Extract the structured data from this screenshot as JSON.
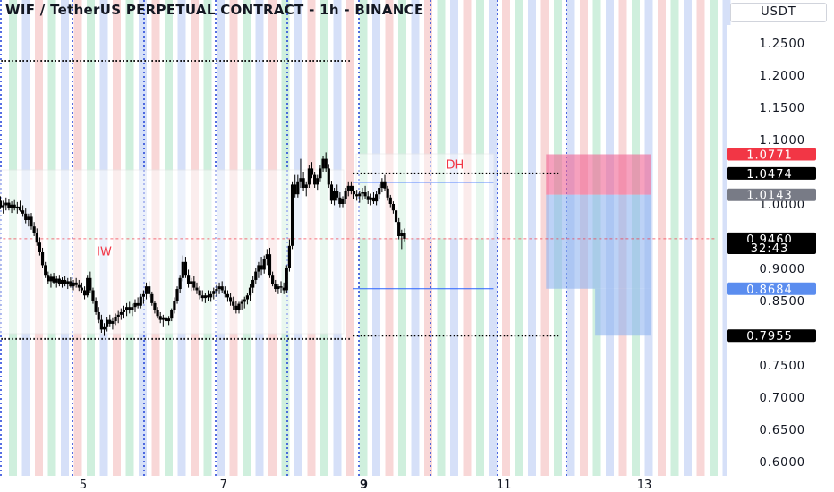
{
  "header": {
    "title": "WIF / TetherUS PERPETUAL CONTRACT - 1h - BINANCE",
    "currency": "USDT"
  },
  "chart_data": {
    "type": "candlestick",
    "ylim": [
      0.59,
      1.27
    ],
    "y_ticks": [
      "1.2500",
      "1.2000",
      "1.1500",
      "1.1000",
      "1.0000",
      "0.9000",
      "0.8500",
      "0.7500",
      "0.7000",
      "0.6500",
      "0.6000"
    ],
    "x_ticks": [
      "5",
      "7",
      "9",
      "11",
      "13"
    ],
    "x_tick_values": [
      5,
      7,
      9,
      11,
      13
    ],
    "xlim": [
      3.78,
      14.0
    ],
    "price_labels": [
      {
        "text": "1.0771",
        "value": 1.0771,
        "bg": "#f23645",
        "fg": "#ffffff"
      },
      {
        "text": "1.0474",
        "value": 1.0474,
        "bg": "#000000",
        "fg": "#ffffff"
      },
      {
        "text": "1.0143",
        "value": 1.0143,
        "bg": "#787b86",
        "fg": "#ffffff"
      },
      {
        "text": "0.9460",
        "value": 0.946,
        "bg": "#000000",
        "fg": "#ffffff"
      },
      {
        "text": "32:43",
        "value": 0.932,
        "bg": "#000000",
        "fg": "#ffffff"
      },
      {
        "text": "0.8684",
        "value": 0.8684,
        "bg": "#5b8def",
        "fg": "#ffffff"
      },
      {
        "text": "0.7955",
        "value": 0.7955,
        "bg": "#000000",
        "fg": "#ffffff"
      }
    ],
    "annotations": [
      {
        "text": "IW",
        "x": 5.3,
        "y": 0.92,
        "color": "#f23645"
      },
      {
        "text": "DH",
        "x": 10.3,
        "y": 1.055,
        "color": "#f23645"
      }
    ],
    "hlines": [
      {
        "value": 1.2222,
        "x_start": 3.78,
        "x_end": 8.8,
        "style": "dotted"
      },
      {
        "value": 0.7905,
        "x_start": 3.78,
        "x_end": 8.8,
        "style": "dotted"
      },
      {
        "value": 1.0474,
        "x_start": 8.85,
        "x_end": 11.8,
        "style": "dotted"
      },
      {
        "value": 0.7955,
        "x_start": 8.85,
        "x_end": 11.8,
        "style": "dotted"
      },
      {
        "value": 1.0335,
        "x_start": 8.85,
        "x_end": 10.85,
        "style": "solid-blue"
      },
      {
        "value": 0.8684,
        "x_start": 8.85,
        "x_end": 10.85,
        "style": "solid-blue"
      },
      {
        "value": 0.946,
        "x_start": 3.78,
        "x_end": 14.0,
        "style": "dashed-red"
      }
    ],
    "zones": [
      {
        "role": "stop",
        "x_start": 11.6,
        "x_end": 13.1,
        "y_low": 1.0143,
        "y_high": 1.0771,
        "color": "#f06292"
      },
      {
        "role": "target",
        "x_start": 11.6,
        "x_end": 13.1,
        "y_low": 0.8684,
        "y_high": 1.0143,
        "color": "#90b4f0"
      },
      {
        "role": "target-ext",
        "x_start": 12.3,
        "x_end": 13.1,
        "y_low": 0.7955,
        "y_high": 0.8684,
        "color": "#90b4f0"
      }
    ],
    "candles": [
      [
        3.78,
        0.995,
        1.012,
        0.988,
        1.005
      ],
      [
        3.82,
        1.005,
        1.012,
        0.992,
        0.995
      ],
      [
        3.86,
        0.995,
        1.005,
        0.985,
        0.998
      ],
      [
        3.9,
        0.998,
        1.01,
        0.99,
        1.002
      ],
      [
        3.94,
        1.002,
        1.008,
        0.99,
        0.994
      ],
      [
        3.98,
        0.994,
        1.004,
        0.986,
        0.999
      ],
      [
        4.02,
        0.999,
        1.006,
        0.99,
        0.993
      ],
      [
        4.06,
        0.993,
        1.003,
        0.985,
        0.996
      ],
      [
        4.1,
        0.996,
        1.005,
        0.988,
        0.99
      ],
      [
        4.14,
        0.99,
        0.998,
        0.98,
        0.985
      ],
      [
        4.18,
        0.985,
        0.993,
        0.97,
        0.975
      ],
      [
        4.22,
        0.975,
        0.985,
        0.965,
        0.98
      ],
      [
        4.26,
        0.98,
        0.986,
        0.96,
        0.965
      ],
      [
        4.3,
        0.965,
        0.972,
        0.95,
        0.955
      ],
      [
        4.34,
        0.955,
        0.962,
        0.935,
        0.94
      ],
      [
        4.38,
        0.94,
        0.948,
        0.92,
        0.925
      ],
      [
        4.42,
        0.925,
        0.932,
        0.9,
        0.905
      ],
      [
        4.46,
        0.905,
        0.91,
        0.885,
        0.89
      ],
      [
        4.5,
        0.89,
        0.895,
        0.875,
        0.88
      ],
      [
        4.54,
        0.88,
        0.892,
        0.87,
        0.887
      ],
      [
        4.58,
        0.887,
        0.893,
        0.875,
        0.878
      ],
      [
        4.62,
        0.878,
        0.889,
        0.87,
        0.884
      ],
      [
        4.66,
        0.884,
        0.89,
        0.872,
        0.876
      ],
      [
        4.7,
        0.876,
        0.886,
        0.87,
        0.882
      ],
      [
        4.74,
        0.882,
        0.888,
        0.872,
        0.875
      ],
      [
        4.78,
        0.875,
        0.885,
        0.868,
        0.88
      ],
      [
        4.82,
        0.88,
        0.886,
        0.87,
        0.872
      ],
      [
        4.86,
        0.872,
        0.882,
        0.866,
        0.878
      ],
      [
        4.9,
        0.878,
        0.885,
        0.87,
        0.874
      ],
      [
        4.94,
        0.874,
        0.882,
        0.865,
        0.87
      ],
      [
        4.98,
        0.87,
        0.878,
        0.862,
        0.866
      ],
      [
        5.02,
        0.866,
        0.872,
        0.852,
        0.858
      ],
      [
        5.06,
        0.858,
        0.89,
        0.855,
        0.885
      ],
      [
        5.1,
        0.885,
        0.895,
        0.862,
        0.866
      ],
      [
        5.14,
        0.866,
        0.87,
        0.845,
        0.85
      ],
      [
        5.18,
        0.85,
        0.855,
        0.828,
        0.832
      ],
      [
        5.22,
        0.832,
        0.84,
        0.815,
        0.82
      ],
      [
        5.26,
        0.82,
        0.828,
        0.8,
        0.805
      ],
      [
        5.3,
        0.805,
        0.815,
        0.795,
        0.81
      ],
      [
        5.34,
        0.81,
        0.825,
        0.802,
        0.82
      ],
      [
        5.38,
        0.82,
        0.828,
        0.81,
        0.814
      ],
      [
        5.42,
        0.814,
        0.824,
        0.805,
        0.818
      ],
      [
        5.46,
        0.818,
        0.83,
        0.812,
        0.825
      ],
      [
        5.5,
        0.825,
        0.834,
        0.815,
        0.828
      ],
      [
        5.54,
        0.828,
        0.838,
        0.82,
        0.832
      ],
      [
        5.58,
        0.832,
        0.842,
        0.822,
        0.836
      ],
      [
        5.62,
        0.836,
        0.846,
        0.826,
        0.84
      ],
      [
        5.66,
        0.84,
        0.848,
        0.83,
        0.835
      ],
      [
        5.7,
        0.835,
        0.845,
        0.826,
        0.84
      ],
      [
        5.74,
        0.84,
        0.852,
        0.832,
        0.846
      ],
      [
        5.78,
        0.846,
        0.855,
        0.838,
        0.842
      ],
      [
        5.82,
        0.842,
        0.86,
        0.838,
        0.856
      ],
      [
        5.86,
        0.856,
        0.866,
        0.845,
        0.86
      ],
      [
        5.9,
        0.86,
        0.878,
        0.852,
        0.872
      ],
      [
        5.94,
        0.872,
        0.88,
        0.855,
        0.86
      ],
      [
        5.98,
        0.86,
        0.864,
        0.842,
        0.846
      ],
      [
        6.02,
        0.846,
        0.85,
        0.83,
        0.835
      ],
      [
        6.06,
        0.835,
        0.84,
        0.822,
        0.826
      ],
      [
        6.1,
        0.826,
        0.832,
        0.815,
        0.82
      ],
      [
        6.14,
        0.82,
        0.828,
        0.81,
        0.824
      ],
      [
        6.18,
        0.824,
        0.83,
        0.812,
        0.818
      ],
      [
        6.22,
        0.818,
        0.826,
        0.812,
        0.822
      ],
      [
        6.26,
        0.822,
        0.838,
        0.818,
        0.835
      ],
      [
        6.3,
        0.835,
        0.855,
        0.83,
        0.85
      ],
      [
        6.34,
        0.85,
        0.872,
        0.845,
        0.868
      ],
      [
        6.38,
        0.868,
        0.89,
        0.862,
        0.885
      ],
      [
        6.42,
        0.885,
        0.92,
        0.88,
        0.91
      ],
      [
        6.46,
        0.91,
        0.918,
        0.885,
        0.89
      ],
      [
        6.5,
        0.89,
        0.898,
        0.87,
        0.875
      ],
      [
        6.54,
        0.875,
        0.885,
        0.865,
        0.88
      ],
      [
        6.58,
        0.88,
        0.888,
        0.866,
        0.87
      ],
      [
        6.62,
        0.87,
        0.878,
        0.86,
        0.866
      ],
      [
        6.66,
        0.866,
        0.872,
        0.852,
        0.858
      ],
      [
        6.7,
        0.858,
        0.866,
        0.848,
        0.854
      ],
      [
        6.74,
        0.854,
        0.862,
        0.846,
        0.858
      ],
      [
        6.78,
        0.858,
        0.866,
        0.85,
        0.855
      ],
      [
        6.82,
        0.855,
        0.865,
        0.848,
        0.86
      ],
      [
        6.86,
        0.86,
        0.87,
        0.852,
        0.865
      ],
      [
        6.9,
        0.865,
        0.874,
        0.856,
        0.868
      ],
      [
        6.94,
        0.868,
        0.878,
        0.86,
        0.872
      ],
      [
        6.98,
        0.872,
        0.88,
        0.862,
        0.866
      ],
      [
        7.02,
        0.866,
        0.872,
        0.855,
        0.86
      ],
      [
        7.06,
        0.86,
        0.866,
        0.848,
        0.855
      ],
      [
        7.1,
        0.855,
        0.862,
        0.842,
        0.848
      ],
      [
        7.14,
        0.848,
        0.856,
        0.836,
        0.842
      ],
      [
        7.18,
        0.842,
        0.85,
        0.83,
        0.836
      ],
      [
        7.22,
        0.836,
        0.848,
        0.83,
        0.845
      ],
      [
        7.26,
        0.845,
        0.852,
        0.836,
        0.848
      ],
      [
        7.3,
        0.848,
        0.856,
        0.838,
        0.852
      ],
      [
        7.34,
        0.852,
        0.862,
        0.844,
        0.858
      ],
      [
        7.38,
        0.858,
        0.875,
        0.85,
        0.87
      ],
      [
        7.42,
        0.87,
        0.888,
        0.862,
        0.882
      ],
      [
        7.46,
        0.882,
        0.9,
        0.875,
        0.895
      ],
      [
        7.5,
        0.895,
        0.91,
        0.885,
        0.905
      ],
      [
        7.54,
        0.905,
        0.918,
        0.89,
        0.898
      ],
      [
        7.58,
        0.898,
        0.92,
        0.892,
        0.915
      ],
      [
        7.62,
        0.915,
        0.93,
        0.905,
        0.922
      ],
      [
        7.66,
        0.922,
        0.932,
        0.885,
        0.89
      ],
      [
        7.7,
        0.89,
        0.895,
        0.872,
        0.876
      ],
      [
        7.74,
        0.876,
        0.882,
        0.864,
        0.868
      ],
      [
        7.78,
        0.868,
        0.876,
        0.86,
        0.872
      ],
      [
        7.82,
        0.872,
        0.88,
        0.862,
        0.87
      ],
      [
        7.86,
        0.87,
        0.878,
        0.86,
        0.866
      ],
      [
        7.9,
        0.866,
        0.905,
        0.862,
        0.9
      ],
      [
        7.94,
        0.9,
        0.945,
        0.895,
        0.935
      ],
      [
        7.98,
        0.935,
        1.035,
        0.93,
        1.03
      ],
      [
        8.02,
        1.03,
        1.045,
        1.01,
        1.015
      ],
      [
        8.06,
        1.015,
        1.045,
        1.01,
        1.035
      ],
      [
        8.1,
        1.035,
        1.07,
        1.025,
        1.04
      ],
      [
        8.14,
        1.04,
        1.05,
        1.02,
        1.025
      ],
      [
        8.18,
        1.025,
        1.035,
        1.012,
        1.03
      ],
      [
        8.22,
        1.03,
        1.06,
        1.025,
        1.055
      ],
      [
        8.26,
        1.055,
        1.065,
        1.04,
        1.045
      ],
      [
        8.3,
        1.045,
        1.05,
        1.025,
        1.03
      ],
      [
        8.34,
        1.03,
        1.045,
        1.022,
        1.04
      ],
      [
        8.38,
        1.04,
        1.06,
        1.035,
        1.055
      ],
      [
        8.42,
        1.055,
        1.075,
        1.05,
        1.07
      ],
      [
        8.46,
        1.07,
        1.08,
        1.05,
        1.055
      ],
      [
        8.5,
        1.055,
        1.062,
        1.025,
        1.03
      ],
      [
        8.54,
        1.03,
        1.036,
        1.0,
        1.005
      ],
      [
        8.58,
        1.005,
        1.025,
        0.998,
        1.02
      ],
      [
        8.62,
        1.02,
        1.03,
        1.005,
        1.01
      ],
      [
        8.66,
        1.01,
        1.018,
        0.995,
        1.0
      ],
      [
        8.7,
        1.0,
        1.012,
        0.995,
        1.008
      ],
      [
        8.74,
        1.008,
        1.025,
        1.0,
        1.02
      ],
      [
        8.78,
        1.02,
        1.035,
        1.012,
        1.028
      ],
      [
        8.82,
        1.028,
        1.035,
        1.015,
        1.02
      ],
      [
        8.86,
        1.02,
        1.028,
        1.008,
        1.015
      ],
      [
        8.9,
        1.015,
        1.022,
        1.005,
        1.012
      ],
      [
        8.94,
        1.012,
        1.02,
        1.002,
        1.016
      ],
      [
        8.98,
        1.016,
        1.025,
        1.006,
        1.018
      ],
      [
        9.02,
        1.018,
        1.028,
        1.008,
        1.012
      ],
      [
        9.06,
        1.012,
        1.02,
        1.0,
        1.006
      ],
      [
        9.1,
        1.006,
        1.016,
        0.998,
        1.01
      ],
      [
        9.14,
        1.01,
        1.018,
        1.0,
        1.004
      ],
      [
        9.18,
        1.004,
        1.02,
        0.998,
        1.015
      ],
      [
        9.22,
        1.015,
        1.03,
        1.008,
        1.025
      ],
      [
        9.26,
        1.025,
        1.04,
        1.018,
        1.035
      ],
      [
        9.3,
        1.035,
        1.045,
        1.02,
        1.024
      ],
      [
        9.34,
        1.024,
        1.028,
        1.005,
        1.01
      ],
      [
        9.38,
        1.01,
        1.014,
        0.995,
        1.0
      ],
      [
        9.42,
        1.0,
        1.004,
        0.985,
        0.99
      ],
      [
        9.46,
        0.99,
        0.995,
        0.968,
        0.972
      ],
      [
        9.5,
        0.972,
        0.978,
        0.945,
        0.95
      ],
      [
        9.54,
        0.95,
        0.96,
        0.93,
        0.955
      ],
      [
        9.58,
        0.955,
        0.962,
        0.942,
        0.946
      ]
    ]
  }
}
